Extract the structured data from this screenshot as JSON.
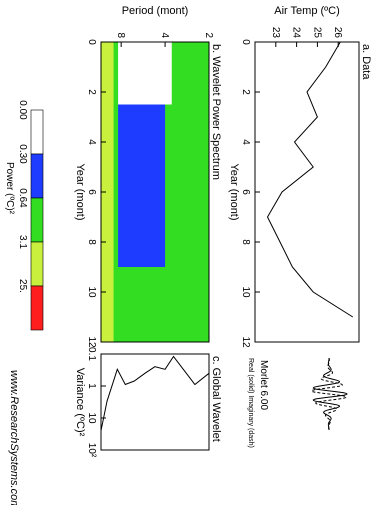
{
  "chart_data": [
    {
      "panel": "a",
      "type": "line",
      "title": "a. Data",
      "xlabel": "Year (mont)",
      "ylabel": "Air Temp (ºC)",
      "xlim": [
        0,
        12
      ],
      "ylim": [
        22,
        27
      ],
      "x_ticks": [
        "0",
        "2",
        "4",
        "6",
        "8",
        "10",
        "12"
      ],
      "y_ticks": [
        "23",
        "24",
        "25",
        "26"
      ],
      "x": [
        0,
        1,
        2,
        3,
        4,
        5,
        6,
        7,
        8,
        9,
        10,
        11
      ],
      "values": [
        26.1,
        25.4,
        24.5,
        25.0,
        23.9,
        24.8,
        23.3,
        22.6,
        23.2,
        23.8,
        24.8,
        26.7
      ]
    },
    {
      "panel": "b",
      "type": "heatmap",
      "title": "b. Wavelet Power Spectrum",
      "xlabel": "Year (mont)",
      "ylabel": "Period (mont)",
      "xlim": [
        0,
        12
      ],
      "ylim": [
        2,
        11
      ],
      "x_ticks": [
        "0",
        "2",
        "4",
        "6",
        "8",
        "10",
        "12"
      ],
      "y_ticks": [
        "2",
        "4",
        "8"
      ],
      "colorbar_label": "Power (ºC)²",
      "levels": [
        "0.00",
        "0.30",
        "0.64",
        "3.1",
        "25."
      ],
      "level_colors": [
        "#ffffff",
        "#1e3cff",
        "#33dd22",
        "#c8f03c",
        "#ff1e1e"
      ],
      "regions": [
        {
          "level": 3,
          "x": [
            0,
            12
          ],
          "period": [
            9,
            11
          ]
        },
        {
          "level": 2,
          "x": [
            0,
            12
          ],
          "period": [
            8.6,
            9
          ]
        },
        {
          "level": 2,
          "x": [
            0,
            12
          ],
          "period": [
            2,
            2.4
          ]
        },
        {
          "level": 1,
          "x": [
            1.5,
            9
          ],
          "period": [
            4,
            8.4
          ]
        },
        {
          "level": 0,
          "x": [
            0,
            2.5
          ],
          "period": [
            3.6,
            8.4
          ]
        }
      ]
    },
    {
      "panel": "c",
      "type": "line",
      "title": "c. Global Wavelet",
      "xlabel": "Variance (ºC)²",
      "xscale": "log",
      "xlim": [
        0.1,
        100
      ],
      "x_ticks": [
        "0.1",
        "1",
        "10",
        "10²"
      ],
      "period_axis": [
        2,
        2.5,
        3,
        3.5,
        4,
        4.7,
        5.5,
        6.5,
        7.5,
        8.5,
        10,
        11
      ],
      "values": [
        0.4,
        0.9,
        0.3,
        0.12,
        0.3,
        0.25,
        0.4,
        0.7,
        0.9,
        0.3,
        3.0,
        25
      ]
    }
  ],
  "wavelet_legend": {
    "name": "Morlet 6.00",
    "note": "Real (solid) Imaginary (dash)"
  },
  "credit": "www.ResearchSystems.com"
}
